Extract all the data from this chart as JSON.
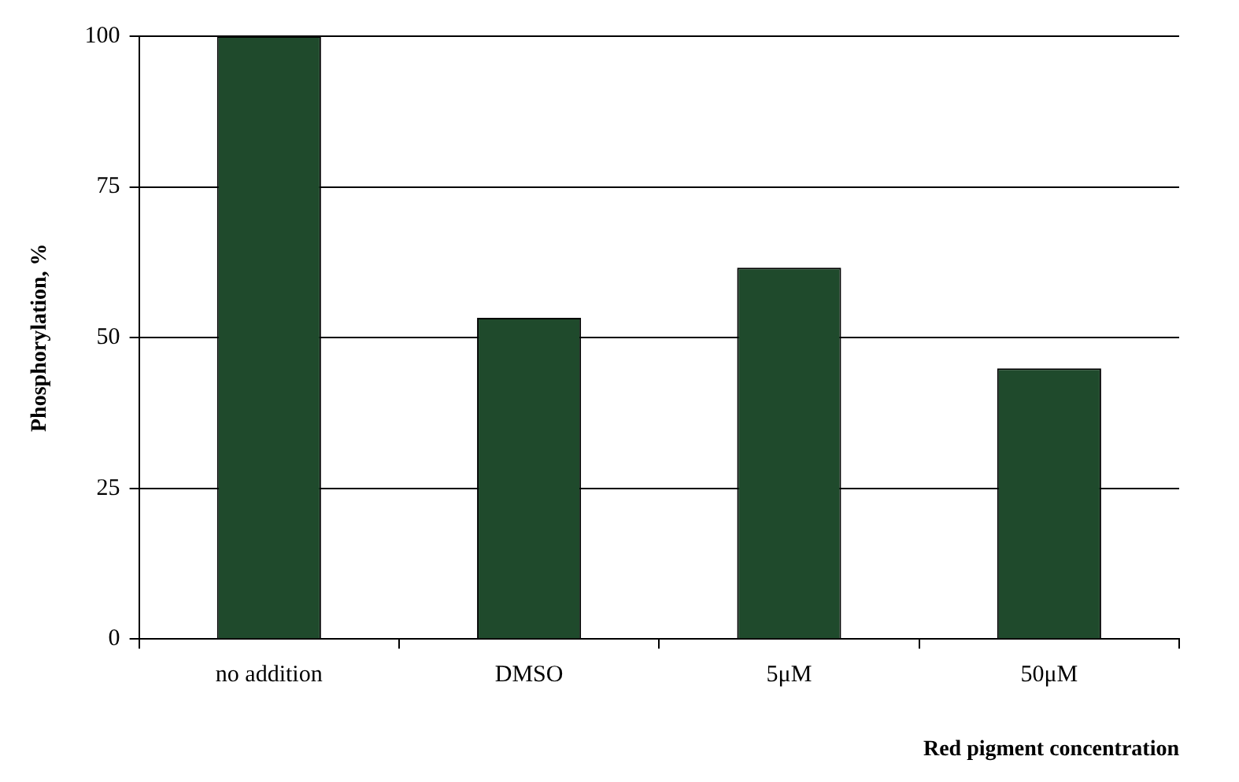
{
  "chart_data": {
    "type": "bar",
    "xlabel": "Red pigment concentration",
    "ylabel": "Phosphorylation, %",
    "categories": [
      "no addition",
      "DMSO",
      "5μM",
      "50μM"
    ],
    "values": [
      100,
      53.3,
      61.6,
      44.9
    ],
    "color": "#1f4a2c",
    "ylim": [
      0,
      100
    ],
    "yticks": [
      0,
      25,
      50,
      75,
      100
    ],
    "grid": "y",
    "legend": false
  }
}
